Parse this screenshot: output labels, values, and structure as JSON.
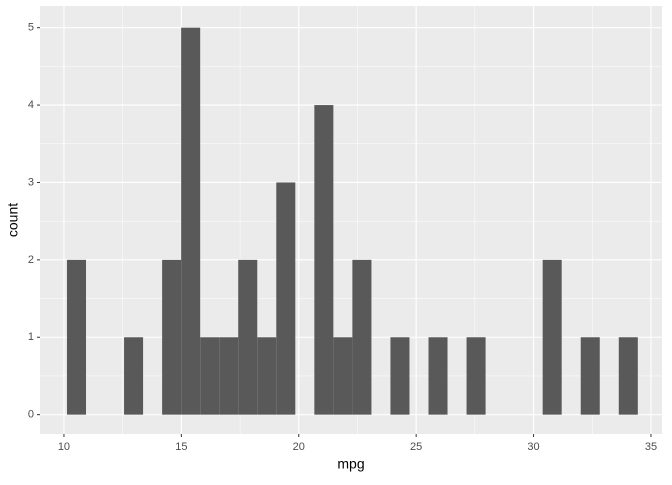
{
  "chart_data": {
    "type": "histogram",
    "bins": [
      10.129,
      10.94,
      11.75,
      12.56,
      13.37,
      14.181,
      14.991,
      15.802,
      16.612,
      17.422,
      18.233,
      19.043,
      19.853,
      20.664,
      21.474,
      22.284,
      23.095,
      23.905,
      24.715,
      25.526,
      26.336,
      27.146,
      27.957,
      28.767,
      29.577,
      30.388,
      31.198,
      32.009,
      32.819,
      33.629,
      34.44
    ],
    "values": [
      2,
      0,
      0,
      1,
      0,
      2,
      5,
      1,
      1,
      2,
      1,
      3,
      0,
      4,
      1,
      2,
      0,
      1,
      0,
      1,
      0,
      1,
      0,
      0,
      0,
      2,
      0,
      1,
      0,
      1
    ],
    "color": "#595959",
    "xlabel": "mpg",
    "ylabel": "count",
    "xlim": [
      8.98,
      35.47
    ],
    "ylim": [
      -0.25,
      5.28
    ],
    "xticks": [
      10,
      15,
      20,
      25,
      30,
      35
    ],
    "yticks": [
      0,
      1,
      2,
      3,
      4,
      5
    ],
    "grid": true
  }
}
